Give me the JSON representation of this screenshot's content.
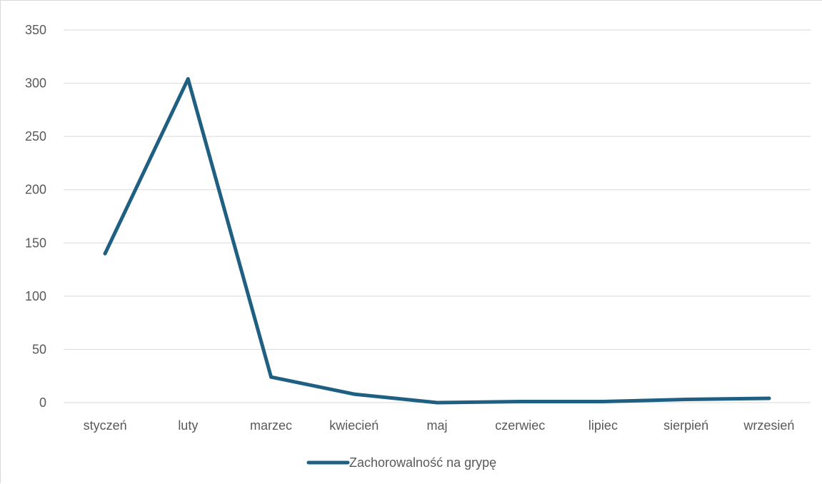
{
  "chart_data": {
    "type": "line",
    "title": "",
    "xlabel": "",
    "ylabel": "",
    "categories": [
      "styczeń",
      "luty",
      "marzec",
      "kwiecień",
      "maj",
      "czerwiec",
      "lipiec",
      "sierpień",
      "wrzesień"
    ],
    "series": [
      {
        "name": "Zachorowalność na grypę",
        "color": "#1f6082",
        "values": [
          140,
          304,
          24,
          8,
          0,
          1,
          1,
          3,
          4
        ]
      }
    ],
    "ylim": [
      0,
      350
    ],
    "yticks": [
      0,
      50,
      100,
      150,
      200,
      250,
      300,
      350
    ],
    "grid": true,
    "legend": "bottom"
  }
}
